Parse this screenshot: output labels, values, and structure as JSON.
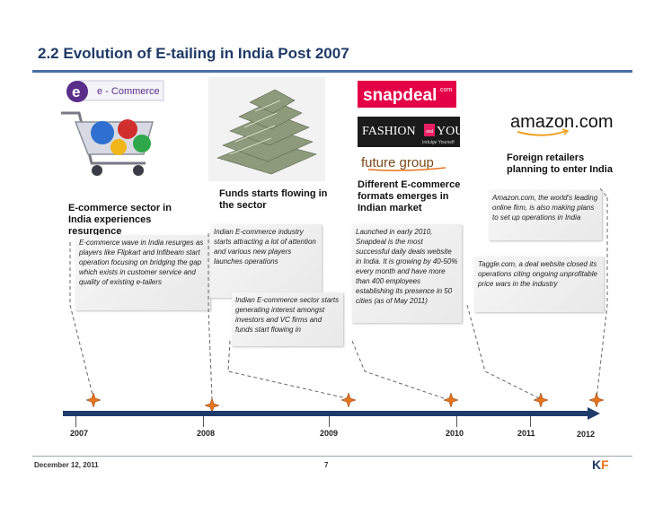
{
  "title": "2.2 Evolution of E-tailing in India Post 2007",
  "images": {
    "ecommerce_label": "e - Commerce",
    "ecommerce_letter": "e"
  },
  "logos": {
    "snapdeal": "snapdeal",
    "snapdeal_suffix": ".com",
    "fashion": "FASHION",
    "fashion_and": "and",
    "fashion_you": "YOU",
    "fashion_tagline": "Indulge Yourself",
    "futuregroup": "future group",
    "amazon": "amazon.com"
  },
  "events": [
    {
      "heading": "E-commerce sector in India experiences resurgence",
      "note": "E-commerce wave in India resurges as players like Flipkart and Infibeam start operation focusing on bridging the gap which exists in customer service and quality of existing e-tailers"
    },
    {
      "heading": "Funds starts flowing in the sector",
      "note": "Indian E-commerce industry starts attracting a lot of attention and various new players launches operations"
    },
    {
      "heading": null,
      "note": "Indian E-commerce sector starts generating interest amongst investors and VC firms and funds start flowing in"
    },
    {
      "heading": "Different E-commerce formats emerges in Indian market",
      "note": "Launched in early 2010, Snapdeal is the most successful daily deals website in India. It is growing by 40-50% every month and have more than 400 employees establishing its presence in 50 cities (as of May 2011)"
    },
    {
      "heading": null,
      "note": "Taggle.com, a deal website closed its operations citing ongoing unprofitable price wars in the industry"
    },
    {
      "heading": "Foreign retailers planning to enter India",
      "note": "Amazon.com, the world's leading online firm, is also making plans to set up operations in India"
    }
  ],
  "timeline": {
    "years": [
      "2007",
      "2008",
      "2009",
      "2010",
      "2011",
      "2012"
    ]
  },
  "footer": {
    "date": "December 12, 2011",
    "page": "7",
    "logo_k": "K",
    "logo_f": "F"
  },
  "colors": {
    "title": "#1f3a66",
    "timeline": "#1f3b6b",
    "star": "#e8741c",
    "kf_k": "#1f3a66",
    "kf_f": "#e8741c"
  }
}
